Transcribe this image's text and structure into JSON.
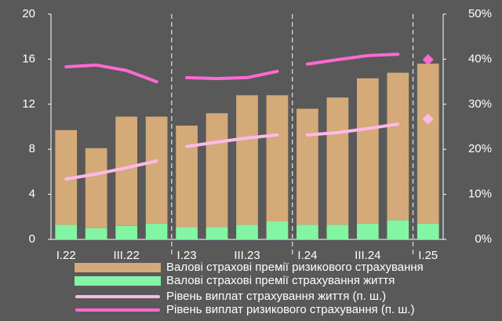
{
  "chart_data": {
    "type": "bar",
    "categories": [
      "I.22",
      null,
      "III.22",
      null,
      "I.23",
      null,
      "III.23",
      null,
      "I.24",
      null,
      "III.24",
      null,
      "I.25"
    ],
    "series": [
      {
        "name": "Валові страхові премії ризикового страхування",
        "type": "bar",
        "color": "#d4aa78",
        "stack": "premiums",
        "values": [
          8.4,
          7.1,
          9.7,
          9.5,
          9.0,
          10.1,
          11.5,
          11.2,
          10.3,
          11.3,
          12.9,
          13.1,
          14.2
        ]
      },
      {
        "name": "Валові страхові премії страхування життя",
        "type": "bar",
        "color": "#84f5a4",
        "stack": "premiums",
        "values": [
          1.3,
          1.0,
          1.2,
          1.4,
          1.1,
          1.1,
          1.3,
          1.6,
          1.3,
          1.3,
          1.4,
          1.7,
          1.4
        ]
      },
      {
        "name": "Рівень виплат страхування життя (п. ш.)",
        "type": "line",
        "axis": "y2",
        "color": "#ffb8ea",
        "values": [
          13.4,
          14.5,
          15.9,
          17.4,
          20.6,
          21.6,
          22.5,
          23.2,
          23.2,
          23.7,
          24.6,
          25.6,
          26.7
        ]
      },
      {
        "name": "Рівень виплат ризикового страхування (п. ш.)",
        "type": "line",
        "axis": "y2",
        "color": "#ff6ad2",
        "values": [
          38.3,
          38.7,
          37.5,
          35.0,
          35.9,
          35.7,
          35.9,
          37.3,
          38.9,
          39.9,
          40.8,
          41.1,
          39.9
        ]
      }
    ],
    "ylim": [
      0,
      20
    ],
    "yticks": [
      0,
      4,
      8,
      12,
      16,
      20
    ],
    "y2lim": [
      0,
      50
    ],
    "y2ticks": [
      {
        "value": 0,
        "label": "0%"
      },
      {
        "value": 10,
        "label": "10%"
      },
      {
        "value": 20,
        "label": "20%"
      },
      {
        "value": 30,
        "label": "30%"
      },
      {
        "value": 40,
        "label": "40%"
      },
      {
        "value": 50,
        "label": "50%"
      }
    ],
    "grid": false,
    "legend": "bottom"
  }
}
